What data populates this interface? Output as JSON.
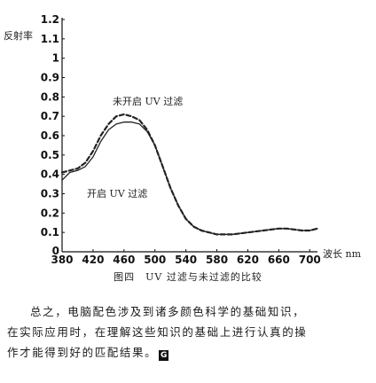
{
  "chart_data": {
    "type": "line",
    "ylabel": "反射率",
    "xlabel": "波长 nm",
    "xlim": [
      380,
      710
    ],
    "ylim": [
      0,
      1.2
    ],
    "x_ticks": [
      "380",
      "420",
      "460",
      "500",
      "540",
      "580",
      "620",
      "660",
      "700"
    ],
    "y_ticks": [
      "0.1",
      "0.2",
      "0.3",
      "0.4",
      "0.5",
      "0.6",
      "0.7",
      "0.8",
      "0.9",
      "1",
      "1.1",
      "1.2"
    ],
    "grid": false,
    "series": [
      {
        "name": "未开启 UV 过滤",
        "style": "dashed",
        "x": [
          380,
          390,
          400,
          410,
          420,
          430,
          440,
          450,
          460,
          470,
          480,
          490,
          500,
          510,
          520,
          530,
          540,
          550,
          560,
          570,
          580,
          590,
          600,
          610,
          620,
          630,
          640,
          650,
          660,
          670,
          680,
          690,
          700,
          710
        ],
        "y": [
          0.41,
          0.42,
          0.43,
          0.46,
          0.52,
          0.6,
          0.66,
          0.7,
          0.71,
          0.7,
          0.68,
          0.63,
          0.55,
          0.44,
          0.33,
          0.24,
          0.17,
          0.13,
          0.11,
          0.1,
          0.09,
          0.09,
          0.09,
          0.095,
          0.1,
          0.105,
          0.11,
          0.115,
          0.12,
          0.12,
          0.115,
          0.11,
          0.11,
          0.12
        ]
      },
      {
        "name": "开启 UV 过滤",
        "style": "solid",
        "x": [
          380,
          390,
          400,
          410,
          420,
          430,
          440,
          450,
          460,
          470,
          480,
          490,
          500,
          510,
          520,
          530,
          540,
          550,
          560,
          570,
          580,
          590,
          600,
          610,
          620,
          630,
          640,
          650,
          660,
          670,
          680,
          690,
          700,
          710
        ],
        "y": [
          0.37,
          0.41,
          0.42,
          0.44,
          0.49,
          0.57,
          0.63,
          0.66,
          0.67,
          0.67,
          0.66,
          0.62,
          0.55,
          0.44,
          0.33,
          0.24,
          0.17,
          0.13,
          0.11,
          0.1,
          0.09,
          0.09,
          0.09,
          0.095,
          0.1,
          0.105,
          0.11,
          0.115,
          0.12,
          0.12,
          0.115,
          0.11,
          0.11,
          0.12
        ]
      }
    ],
    "annotations": [
      "未开启 UV 过滤",
      "开启 UV 过滤"
    ]
  },
  "caption": "图四　UV 过滤与未过滤的比较",
  "paragraph": {
    "lines": [
      "总之，电脑配色涉及到诸多颜色科学的基础知识，",
      "在实际应用时，在理解这些知识的基础上进行认真的操",
      "作才能得到好的匹配结果。"
    ],
    "end_mark": "G"
  }
}
